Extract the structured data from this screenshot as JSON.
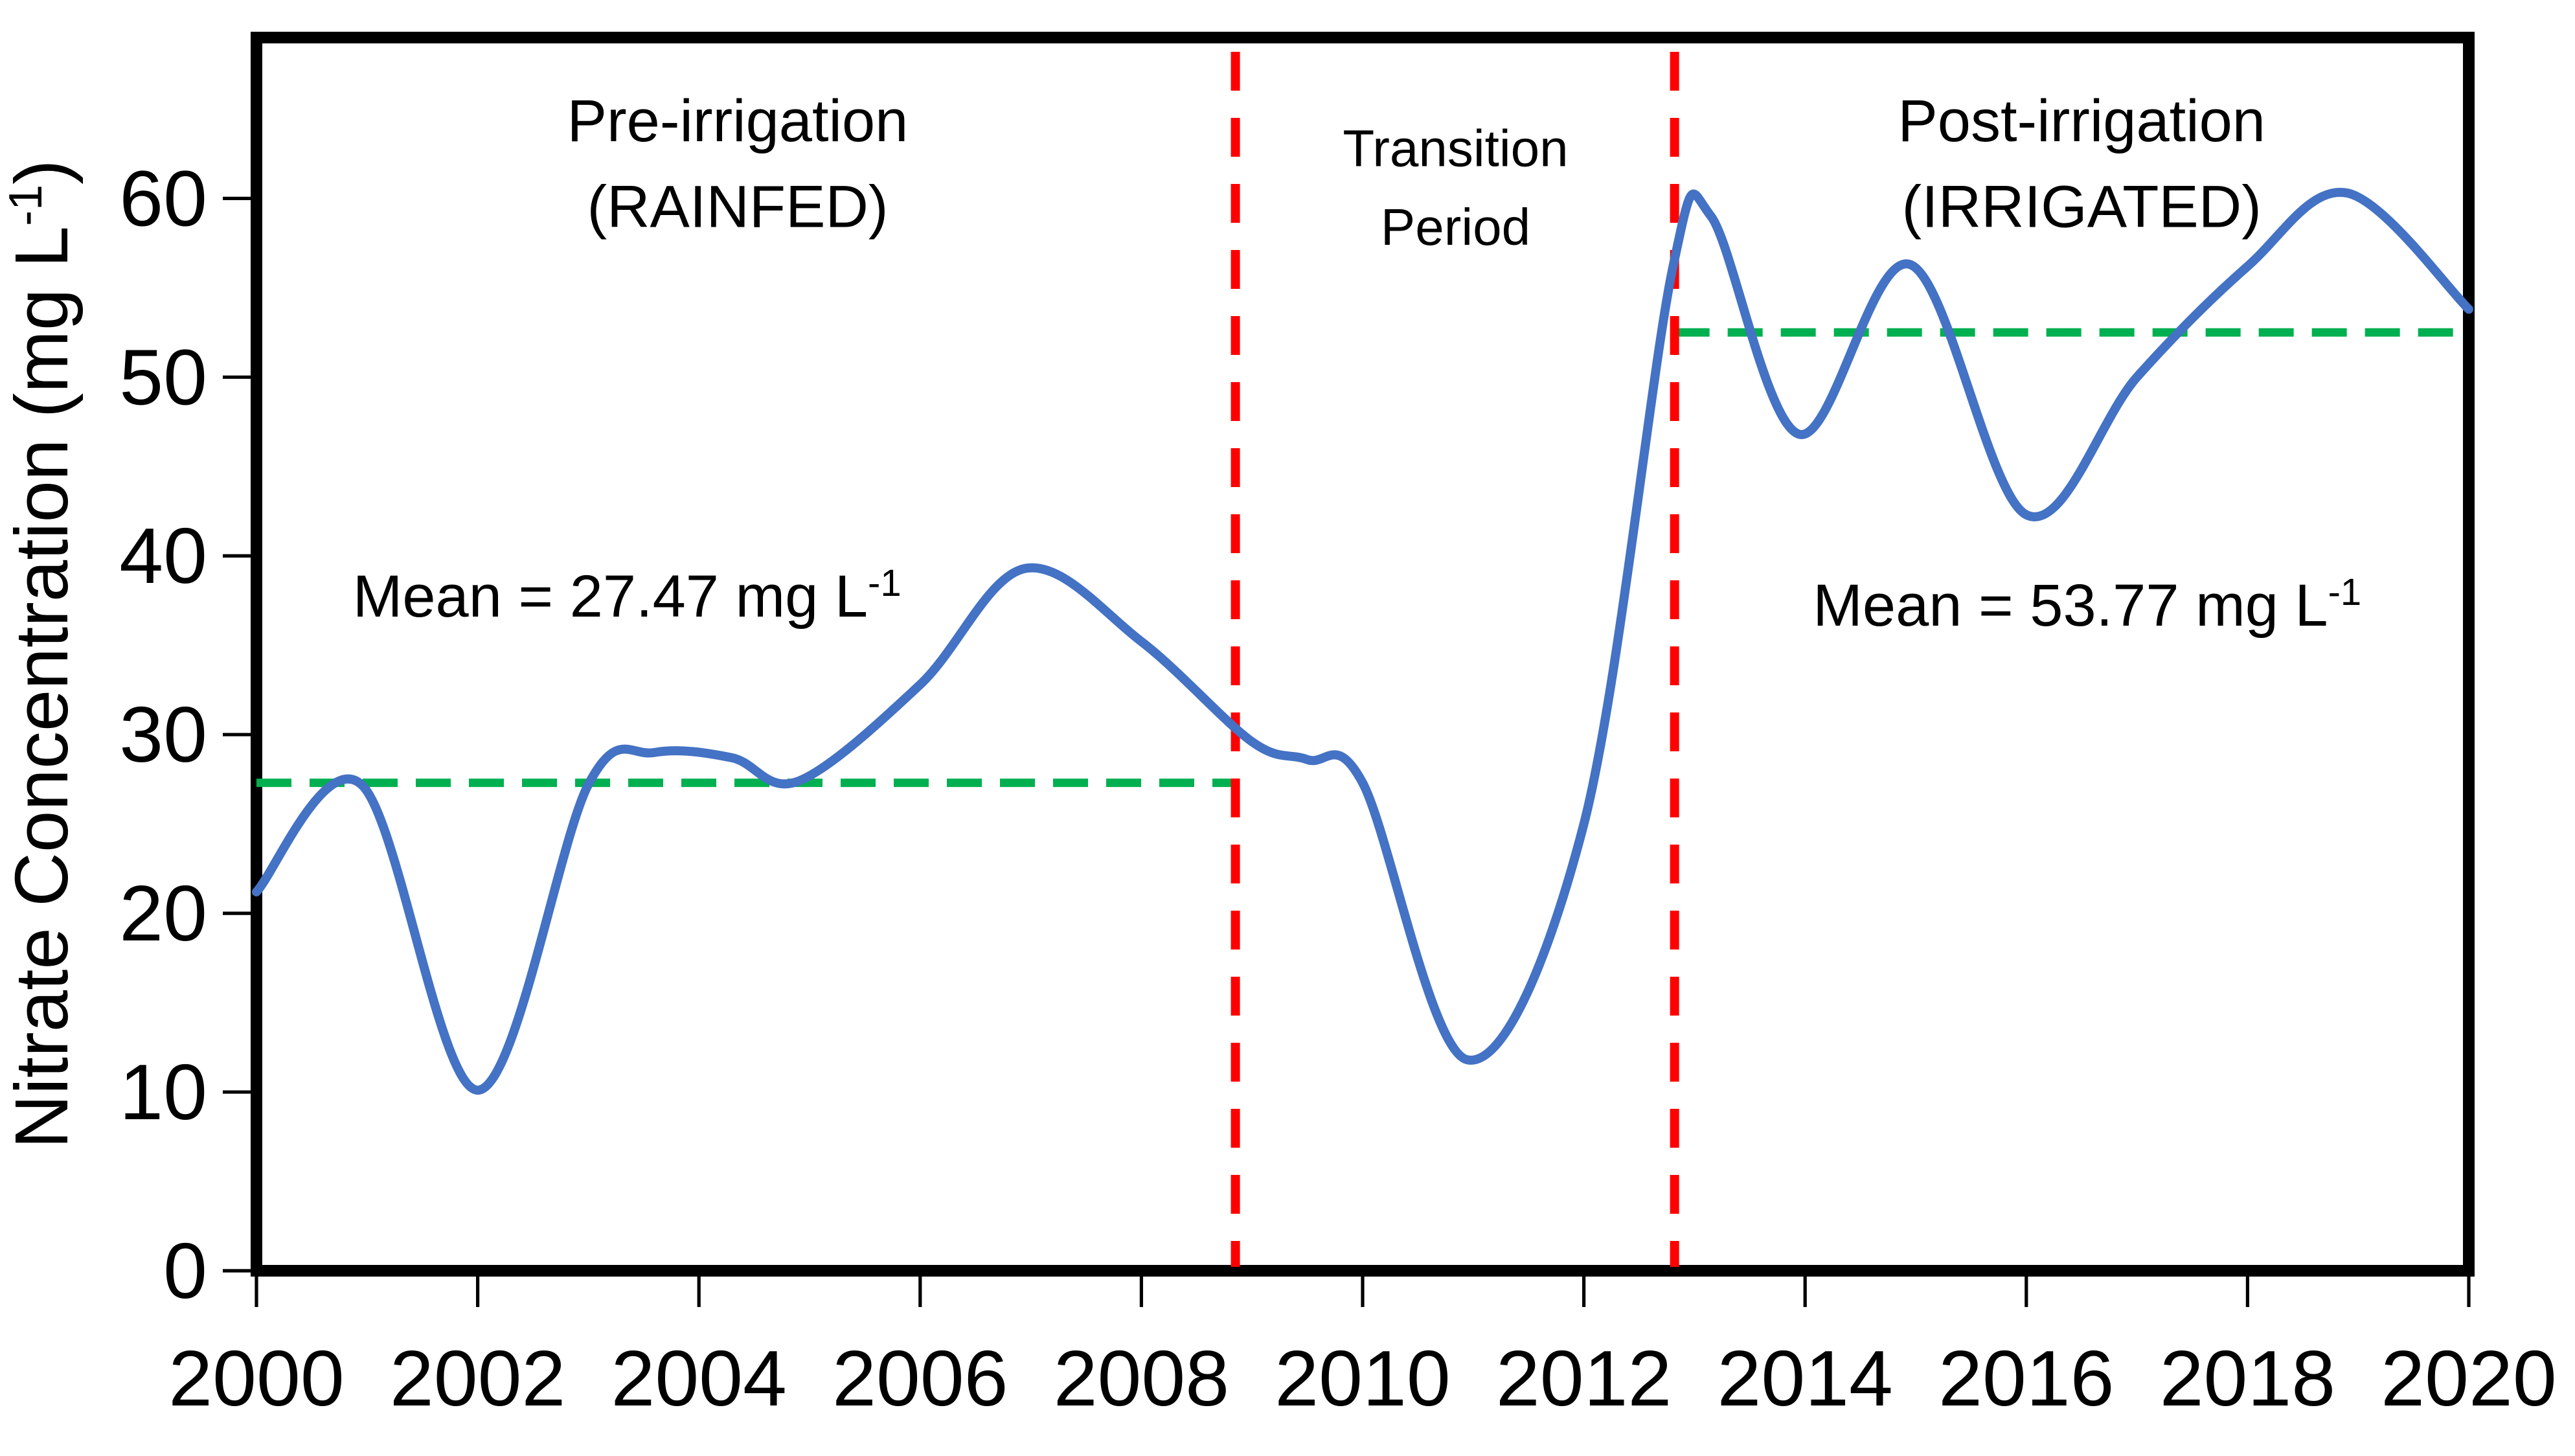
{
  "figure": {
    "background": "#FFFFFF",
    "axis_color": "#000000",
    "text_color": "#000000"
  },
  "chart_data": {
    "type": "line",
    "title": "",
    "xlabel": "",
    "ylabel": {
      "text": "Nitrate Concentration (mg L⁻¹)",
      "main": "Nitrate Concentration (mg L",
      "sup": "-1",
      "close": ")"
    },
    "xlim": [
      2000,
      2020
    ],
    "ylim": [
      0,
      69
    ],
    "x_ticks": [
      2000,
      2002,
      2004,
      2006,
      2008,
      2010,
      2012,
      2014,
      2016,
      2018,
      2020
    ],
    "y_ticks": [
      0,
      10,
      20,
      30,
      40,
      50,
      60
    ],
    "grid": false,
    "legend_position": "none",
    "series": [
      {
        "name": "Nitrate concentration",
        "color": "#4472C4",
        "stroke_width": 7,
        "smooth": true,
        "points": [
          {
            "x": 2000.0,
            "y": 21.2
          },
          {
            "x": 2000.95,
            "y": 27.2
          },
          {
            "x": 2002.0,
            "y": 10.1
          },
          {
            "x": 2003.0,
            "y": 27.2
          },
          {
            "x": 2003.6,
            "y": 29.0
          },
          {
            "x": 2004.3,
            "y": 28.7
          },
          {
            "x": 2004.9,
            "y": 27.4
          },
          {
            "x": 2006.0,
            "y": 32.8
          },
          {
            "x": 2006.95,
            "y": 39.3
          },
          {
            "x": 2008.0,
            "y": 35.2
          },
          {
            "x": 2009.0,
            "y": 29.6
          },
          {
            "x": 2009.5,
            "y": 28.6
          },
          {
            "x": 2010.0,
            "y": 27.3
          },
          {
            "x": 2010.95,
            "y": 11.8
          },
          {
            "x": 2012.0,
            "y": 25.0
          },
          {
            "x": 2012.8,
            "y": 56.0
          },
          {
            "x": 2013.15,
            "y": 59.0
          },
          {
            "x": 2013.95,
            "y": 46.8
          },
          {
            "x": 2014.95,
            "y": 56.3
          },
          {
            "x": 2016.0,
            "y": 42.3
          },
          {
            "x": 2017.0,
            "y": 50.0
          },
          {
            "x": 2018.0,
            "y": 56.2
          },
          {
            "x": 2018.9,
            "y": 60.3
          },
          {
            "x": 2020.0,
            "y": 53.8
          }
        ]
      }
    ],
    "period_dividers": {
      "color": "#FF0000",
      "style": "dashed",
      "x_values": [
        2008.85,
        2012.82
      ]
    },
    "mean_lines": [
      {
        "color": "#00B050",
        "style": "dashed",
        "mean_value": 27.47,
        "drawn_at": 27.3,
        "x_start": 2000,
        "x_end": 2008.85,
        "label": {
          "text": "Mean = 27.47 mg L⁻¹",
          "main": "Mean = 27.47 mg L",
          "sup": "-1"
        },
        "label_pos": {
          "x": 2003.35,
          "y": 36.6
        }
      },
      {
        "color": "#00B050",
        "style": "dashed",
        "mean_value": 53.77,
        "drawn_at": 52.5,
        "x_start": 2012.82,
        "x_end": 2020,
        "label": {
          "text": "Mean = 53.77 mg L⁻¹",
          "main": "Mean = 53.77 mg L",
          "sup": "-1"
        },
        "label_pos": {
          "x": 2016.55,
          "y": 36.1
        }
      }
    ],
    "region_labels": [
      {
        "id": "pre-irrigation",
        "line1": "Pre-irrigation",
        "line2": "(RAINFED)",
        "x": 2004.35,
        "y1": 63.2,
        "y2": 58.4,
        "size": "large"
      },
      {
        "id": "transition",
        "line1": "Transition",
        "line2": "Period",
        "x": 2010.84,
        "y1": 61.8,
        "y2": 57.4,
        "size": "small"
      },
      {
        "id": "post-irrigation",
        "line1": "Post-irrigation",
        "line2": "(IRRIGATED)",
        "x": 2016.5,
        "y1": 63.2,
        "y2": 58.4,
        "size": "large"
      }
    ]
  }
}
